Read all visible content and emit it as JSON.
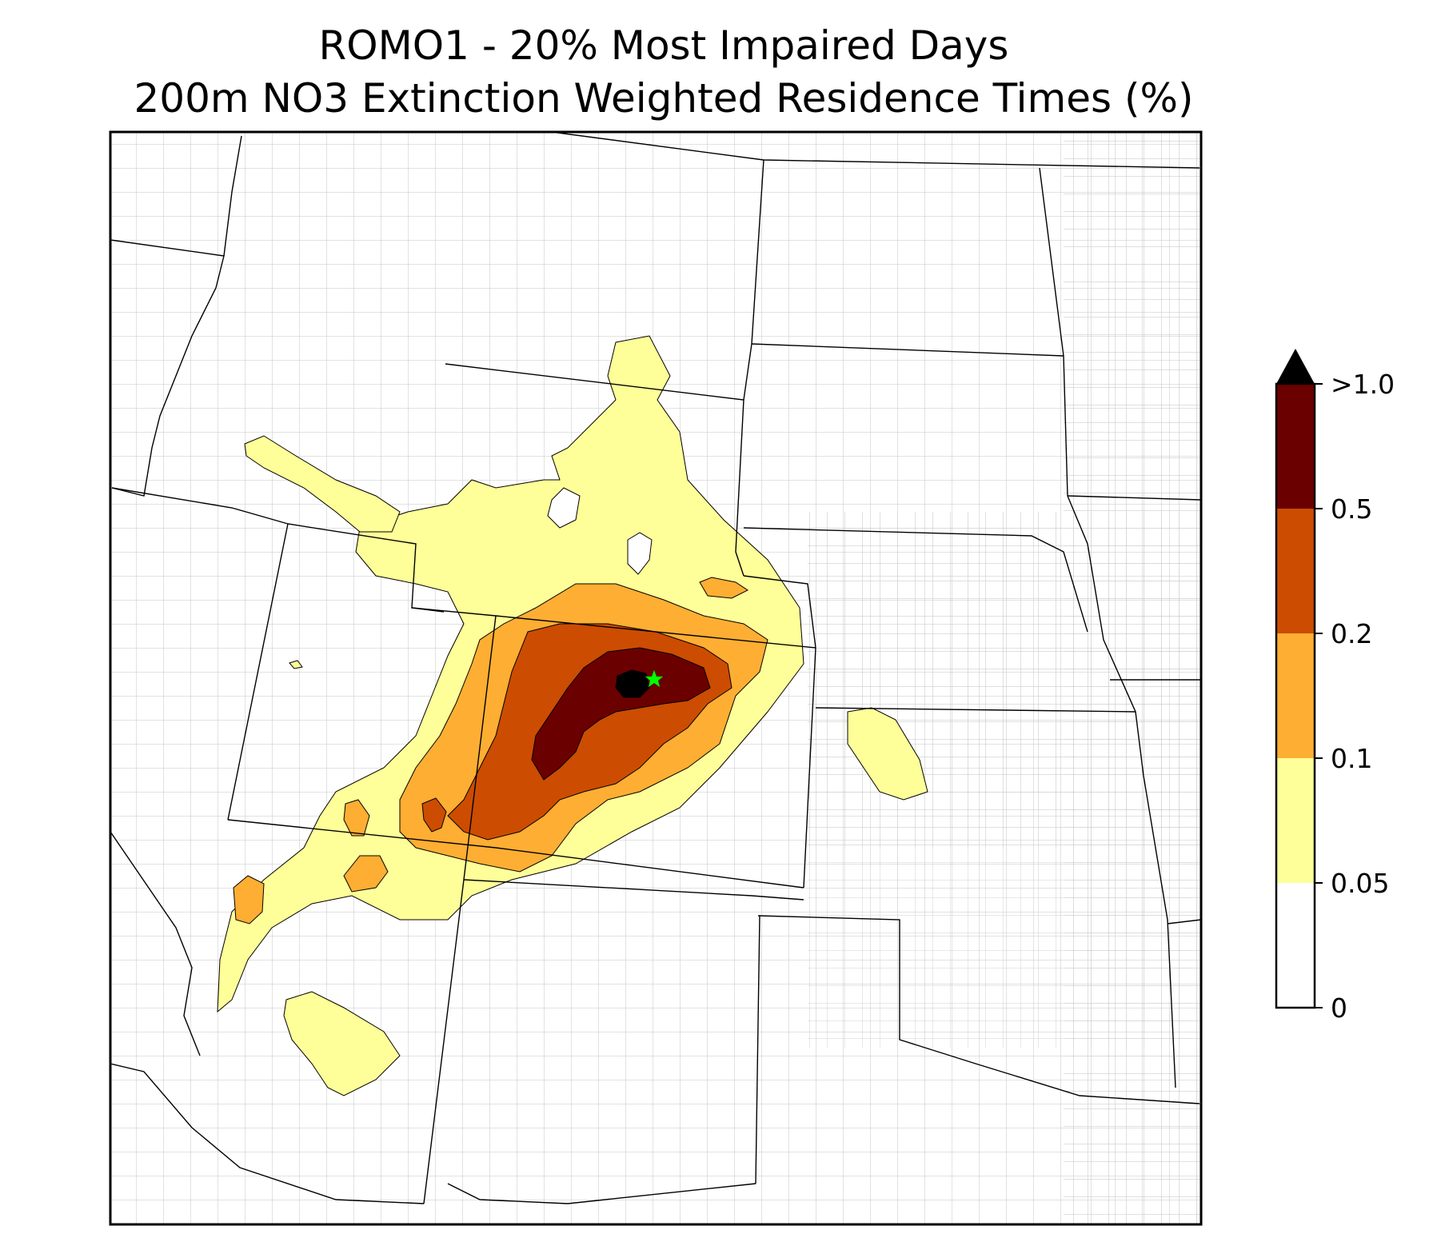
{
  "title": {
    "line1": "ROMO1 - 20% Most Impaired Days",
    "line2": "200m NO3 Extinction Weighted Residence Times (%)"
  },
  "map": {
    "region": "Central / Western United States",
    "receptor_marker": {
      "symbol": "star",
      "color": "#00ff00"
    },
    "state_border_color": "#000000",
    "county_border_color": "#a8a8a8"
  },
  "colorbar": {
    "extend": "max",
    "tick_labels": [
      "0",
      "0.05",
      "0.1",
      "0.2",
      "0.5",
      ">1.0"
    ],
    "levels": [
      {
        "from": 0,
        "to": 0.05,
        "color": "#ffffff"
      },
      {
        "from": 0.05,
        "to": 0.1,
        "color": "#ffff99"
      },
      {
        "from": 0.1,
        "to": 0.2,
        "color": "#fdae33"
      },
      {
        "from": 0.2,
        "to": 0.5,
        "color": "#cc4c02"
      },
      {
        "from": 0.5,
        "to": 1.0,
        "color": "#6b0000"
      },
      {
        "from": 1.0,
        "to": null,
        "color": "#000000"
      }
    ]
  }
}
